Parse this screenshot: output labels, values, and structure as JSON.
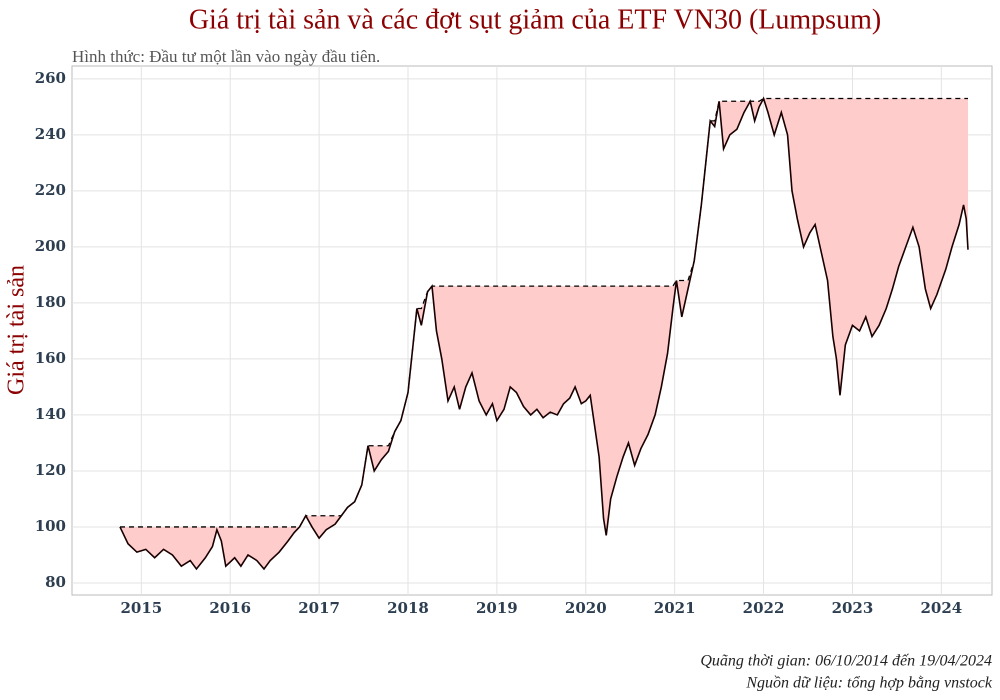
{
  "chart_data": {
    "type": "drawdown",
    "title": "Giá trị tài sản và các đợt sụt giảm của ETF VN30 (Lumpsum)",
    "subtitle": "Hình thức: Đầu tư một lần vào ngày đầu tiên.",
    "y_label": "Giá trị tài sản",
    "footer": [
      "Quãng thời gian: 06/10/2014 đến 19/04/2024",
      "Nguồn dữ liệu: tổng hợp bằng vnstock"
    ],
    "line_color": "#1a0000",
    "fill_color": "#ffcccc",
    "grid": true,
    "xlim": [
      2014.22,
      2024.57
    ],
    "xticks": [
      2015,
      2016,
      2017,
      2018,
      2019,
      2020,
      2021,
      2022,
      2023,
      2024
    ],
    "ylim": [
      75.7,
      264.6
    ],
    "yticks": [
      80,
      100,
      120,
      140,
      160,
      180,
      200,
      220,
      240,
      260
    ],
    "x": [
      2014.76,
      2014.85,
      2014.95,
      2015.05,
      2015.15,
      2015.25,
      2015.35,
      2015.45,
      2015.55,
      2015.62,
      2015.72,
      2015.8,
      2015.85,
      2015.9,
      2015.95,
      2016.05,
      2016.12,
      2016.2,
      2016.3,
      2016.38,
      2016.45,
      2016.55,
      2016.65,
      2016.72,
      2016.78,
      2016.85,
      2016.92,
      2017.0,
      2017.08,
      2017.18,
      2017.25,
      2017.32,
      2017.4,
      2017.48,
      2017.55,
      2017.62,
      2017.7,
      2017.78,
      2017.85,
      2017.92,
      2018.0,
      2018.05,
      2018.1,
      2018.15,
      2018.22,
      2018.27,
      2018.32,
      2018.38,
      2018.45,
      2018.52,
      2018.58,
      2018.65,
      2018.72,
      2018.8,
      2018.88,
      2018.95,
      2019.0,
      2019.08,
      2019.15,
      2019.22,
      2019.3,
      2019.38,
      2019.45,
      2019.52,
      2019.6,
      2019.68,
      2019.75,
      2019.82,
      2019.88,
      2019.95,
      2020.0,
      2020.05,
      2020.1,
      2020.15,
      2020.2,
      2020.23,
      2020.28,
      2020.35,
      2020.42,
      2020.48,
      2020.55,
      2020.62,
      2020.7,
      2020.78,
      2020.85,
      2020.92,
      2020.98,
      2021.02,
      2021.08,
      2021.15,
      2021.22,
      2021.3,
      2021.35,
      2021.4,
      2021.45,
      2021.5,
      2021.55,
      2021.62,
      2021.7,
      2021.78,
      2021.85,
      2021.9,
      2021.95,
      2022.0,
      2022.05,
      2022.12,
      2022.2,
      2022.27,
      2022.32,
      2022.38,
      2022.45,
      2022.52,
      2022.58,
      2022.65,
      2022.72,
      2022.78,
      2022.82,
      2022.86,
      2022.92,
      2023.0,
      2023.08,
      2023.15,
      2023.22,
      2023.3,
      2023.38,
      2023.45,
      2023.52,
      2023.6,
      2023.68,
      2023.75,
      2023.82,
      2023.88,
      2023.95,
      2024.05,
      2024.12,
      2024.2,
      2024.25,
      2024.28,
      2024.3
    ],
    "values": [
      100,
      94,
      91,
      92,
      89,
      92,
      90,
      86,
      88,
      85,
      89,
      93,
      99,
      95,
      86,
      89,
      86,
      90,
      88,
      85,
      88,
      91,
      95,
      98,
      100,
      104,
      100,
      96,
      99,
      101,
      104,
      107,
      109,
      115,
      129,
      120,
      124,
      127,
      134,
      138,
      148,
      163,
      178,
      172,
      184,
      186,
      170,
      160,
      145,
      150,
      142,
      150,
      155,
      145,
      140,
      144,
      138,
      142,
      150,
      148,
      143,
      140,
      142,
      139,
      141,
      140,
      144,
      146,
      150,
      144,
      145,
      147,
      136,
      125,
      103,
      97,
      110,
      118,
      125,
      130,
      122,
      128,
      133,
      140,
      150,
      162,
      178,
      188,
      175,
      185,
      195,
      215,
      230,
      245,
      243,
      252,
      235,
      240,
      242,
      248,
      252,
      245,
      250,
      253,
      248,
      240,
      248,
      240,
      220,
      210,
      200,
      205,
      208,
      198,
      188,
      168,
      160,
      147,
      165,
      172,
      170,
      175,
      168,
      172,
      178,
      185,
      193,
      200,
      207,
      200,
      185,
      178,
      183,
      192,
      200,
      208,
      215,
      210,
      199
    ]
  }
}
